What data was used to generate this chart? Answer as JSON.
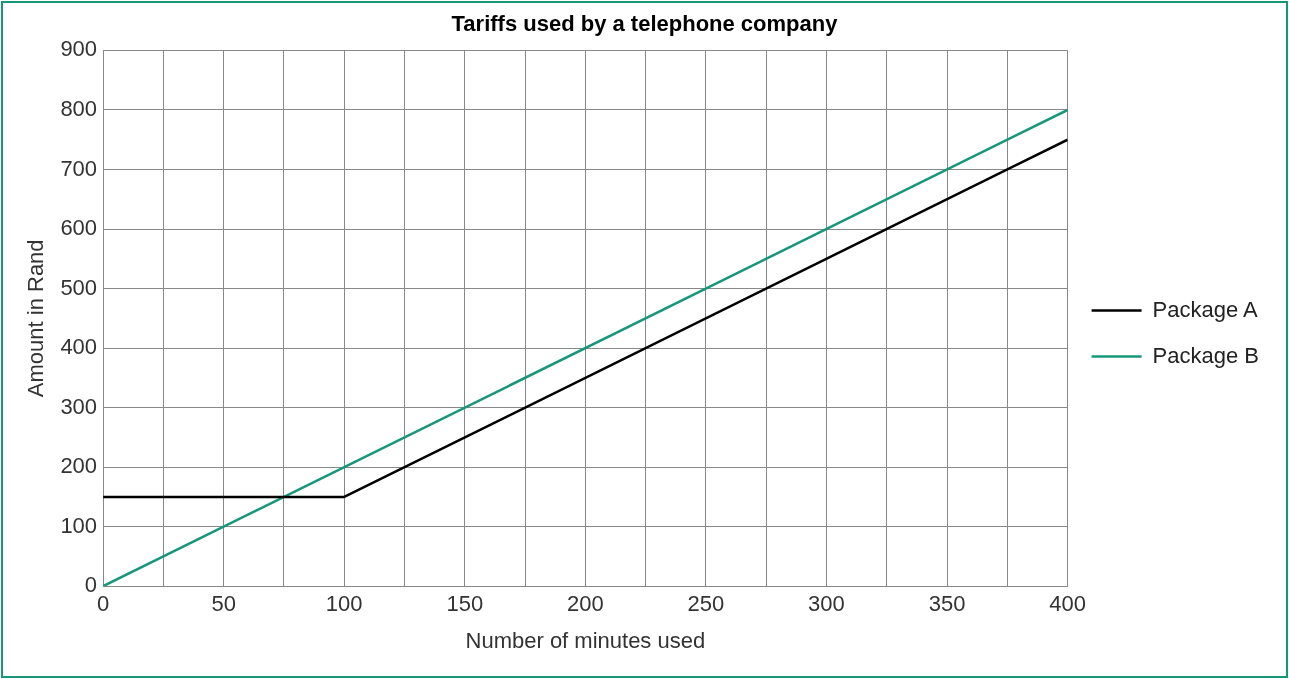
{
  "chart_data": {
    "type": "line",
    "title": "Tariffs used by a telephone company",
    "xlabel": "Number of minutes used",
    "ylabel": "Amount in Rand",
    "series": [
      {
        "name": "Package A",
        "color": "#000000",
        "x": [
          0,
          100,
          400
        ],
        "values": [
          150,
          150,
          750
        ]
      },
      {
        "name": "Package B",
        "color": "#17977a",
        "x": [
          0,
          400
        ],
        "values": [
          0,
          800
        ]
      }
    ],
    "xlim": [
      0,
      400
    ],
    "xticks": [
      0,
      {
        "value": 25,
        "label": null
      },
      50,
      {
        "value": 75,
        "label": null
      },
      100,
      {
        "value": 125,
        "label": null
      },
      150,
      {
        "value": 175,
        "label": null
      },
      200,
      {
        "value": 225,
        "label": null
      },
      250,
      {
        "value": 275,
        "label": null
      },
      300,
      {
        "value": 325,
        "label": null
      },
      350,
      {
        "value": 375,
        "label": null
      },
      400
    ],
    "ylim": [
      0,
      900
    ],
    "yticks": [
      0,
      100,
      200,
      300,
      400,
      500,
      600,
      700,
      800,
      900
    ],
    "grid": true,
    "legend": "right",
    "marker": "none",
    "line_style": "solid"
  }
}
